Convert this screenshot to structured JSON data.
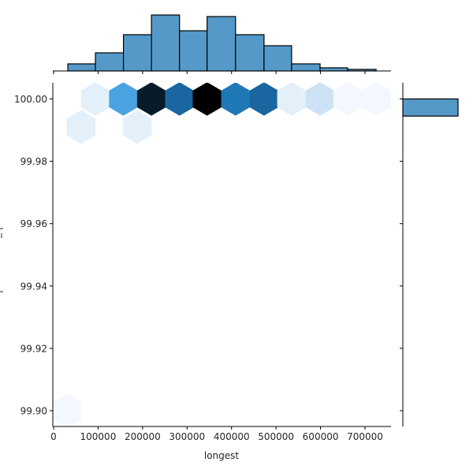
{
  "chart_data": {
    "type": "hexbin",
    "title": "",
    "xlabel": "longest",
    "ylabel": "",
    "xlim": [
      -1000,
      760000
    ],
    "ylim": [
      99.8955,
      100.0025
    ],
    "x_ticks": [
      "0",
      "100000",
      "200000",
      "300000",
      "400000",
      "500000",
      "600000",
      "700000"
    ],
    "x_tick_values": [
      0,
      100000,
      200000,
      300000,
      400000,
      500000,
      600000,
      700000
    ],
    "y_ticks": [
      "99.90",
      "99.92",
      "99.94",
      "99.96",
      "99.98",
      "100.00"
    ],
    "y_tick_values": [
      99.9,
      99.92,
      99.94,
      99.96,
      99.98,
      100.0
    ],
    "colormap": "Blues",
    "hexbins": [
      {
        "x": 94000,
        "y": 100.0,
        "color": "#e3eff9"
      },
      {
        "x": 157000,
        "y": 100.0,
        "color": "#4aa3e0"
      },
      {
        "x": 220000,
        "y": 100.0,
        "color": "#071b2a"
      },
      {
        "x": 283000,
        "y": 100.0,
        "color": "#1a66a0"
      },
      {
        "x": 345000,
        "y": 100.0,
        "color": "#000000"
      },
      {
        "x": 409000,
        "y": 100.0,
        "color": "#2079b7"
      },
      {
        "x": 473000,
        "y": 100.0,
        "color": "#1a66a0"
      },
      {
        "x": 535000,
        "y": 100.0,
        "color": "#e3eff9"
      },
      {
        "x": 599000,
        "y": 100.0,
        "color": "#cde3f5"
      },
      {
        "x": 661000,
        "y": 100.0,
        "color": "#f2f8fd"
      },
      {
        "x": 725000,
        "y": 100.0,
        "color": "#f2f8fd"
      },
      {
        "x": 62000,
        "y": 99.991,
        "color": "#e3eff9"
      },
      {
        "x": 188000,
        "y": 99.991,
        "color": "#e3eff9"
      },
      {
        "x": 30000,
        "y": 99.9,
        "color": "#f2f8fd"
      }
    ],
    "marginal_x": {
      "type": "histogram",
      "bin_edges": [
        32000,
        94000,
        157000,
        220000,
        283000,
        345000,
        409000,
        473000,
        535000,
        599000,
        661000,
        725000
      ],
      "relative_heights": [
        9,
        23,
        46,
        71,
        51,
        69,
        46,
        32,
        9,
        4,
        2
      ],
      "color": "#5599c8"
    },
    "marginal_y": {
      "type": "histogram",
      "bin_edges": [
        99.9945,
        100.0
      ],
      "relative_heights": [
        100
      ],
      "color": "#5599c8"
    }
  }
}
